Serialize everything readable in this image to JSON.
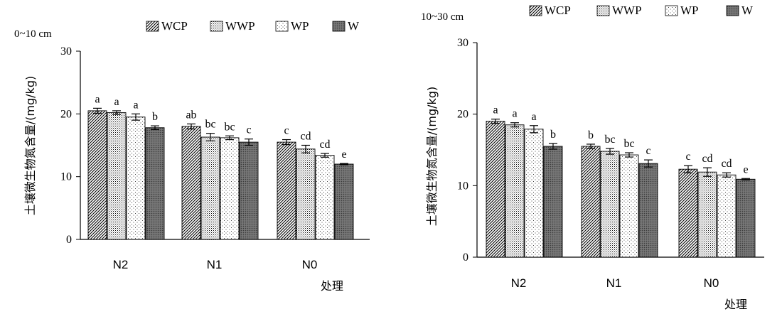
{
  "chart_data": [
    {
      "type": "bar",
      "title": "0~10 cm",
      "ylabel": "土壤微生物氮含量/(mg/kg)",
      "xlabel": "处理",
      "ylim": [
        0,
        30
      ],
      "yticks": [
        0,
        10,
        20,
        30
      ],
      "categories": [
        "N2",
        "N1",
        "N0"
      ],
      "legend_position": "top",
      "series": [
        {
          "name": "WCP",
          "values": [
            20.5,
            18.0,
            15.5
          ],
          "errors": [
            0.4,
            0.4,
            0.4
          ],
          "labels": [
            "a",
            "ab",
            "c"
          ]
        },
        {
          "name": "WWP",
          "values": [
            20.2,
            16.3,
            14.4
          ],
          "errors": [
            0.3,
            0.6,
            0.6
          ],
          "labels": [
            "a",
            "bc",
            "cd"
          ]
        },
        {
          "name": "WP",
          "values": [
            19.5,
            16.2,
            13.4
          ],
          "errors": [
            0.5,
            0.3,
            0.3
          ],
          "labels": [
            "a",
            "bc",
            "cd"
          ]
        },
        {
          "name": "W",
          "values": [
            17.8,
            15.5,
            12.0
          ],
          "errors": [
            0.3,
            0.5,
            0.1
          ],
          "labels": [
            "b",
            "c",
            "e"
          ]
        }
      ]
    },
    {
      "type": "bar",
      "title": "10~30 cm",
      "ylabel": "土壤微生物氮含量/(mg/kg)",
      "xlabel": "处理",
      "ylim": [
        0,
        30
      ],
      "yticks": [
        0,
        10,
        20,
        30
      ],
      "categories": [
        "N2",
        "N1",
        "N0"
      ],
      "legend_position": "top",
      "series": [
        {
          "name": "WCP",
          "values": [
            19.0,
            15.5,
            12.3
          ],
          "errors": [
            0.3,
            0.3,
            0.5
          ],
          "labels": [
            "a",
            "b",
            "c"
          ]
        },
        {
          "name": "WWP",
          "values": [
            18.5,
            14.8,
            11.9
          ],
          "errors": [
            0.3,
            0.4,
            0.6
          ],
          "labels": [
            "a",
            "bc",
            "cd"
          ]
        },
        {
          "name": "WP",
          "values": [
            17.9,
            14.3,
            11.5
          ],
          "errors": [
            0.5,
            0.3,
            0.3
          ],
          "labels": [
            "a",
            "bc",
            "cd"
          ]
        },
        {
          "name": "W",
          "values": [
            15.5,
            13.1,
            10.9
          ],
          "errors": [
            0.4,
            0.5,
            0.1
          ],
          "labels": [
            "b",
            "c",
            "e"
          ]
        }
      ]
    }
  ],
  "colors": {
    "bar_stroke": "#000000",
    "W_fill": "#6b6b6b",
    "WP_fill": "#ffffff",
    "WWP_fill": "#ffffff",
    "WCP_fill": "#ffffff",
    "axis": "#000000"
  }
}
